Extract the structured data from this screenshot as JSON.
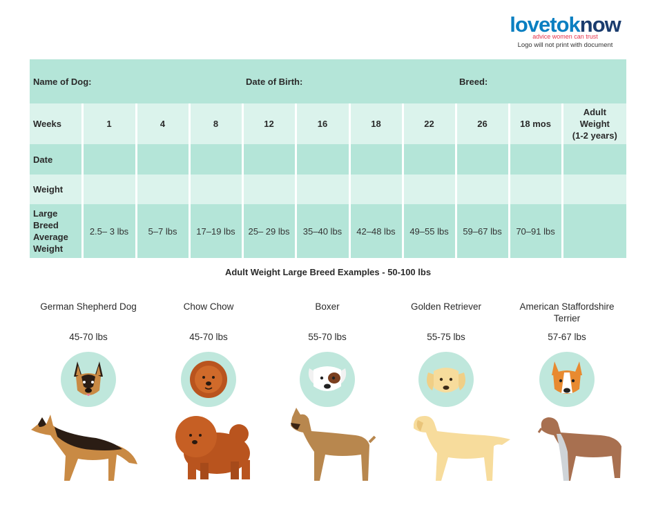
{
  "logo": {
    "word_a": "lovetok",
    "word_b": "now",
    "tagline": "advice women can trust",
    "note": "Logo will not print with document"
  },
  "header": {
    "name_label": "Name of Dog:",
    "dob_label": "Date of Birth:",
    "breed_label": "Breed:"
  },
  "table": {
    "weeks_label": "Weeks",
    "weeks": [
      "1",
      "4",
      "8",
      "12",
      "16",
      "18",
      "22",
      "26",
      "18 mos"
    ],
    "adult_weight_header": [
      "Adult",
      "Weight",
      "(1-2 years)"
    ],
    "date_label": "Date",
    "weight_label": "Weight",
    "large_breed_label": [
      "Large",
      "Breed",
      "Average",
      "Weight"
    ],
    "large_breed_values": [
      "2.5– 3 lbs",
      "5–7 lbs",
      "17–19 lbs",
      "25– 29 lbs",
      "35–40 lbs",
      "42–48 lbs",
      "49–55 lbs",
      "59–67 lbs",
      "70–91 lbs",
      ""
    ]
  },
  "examples": {
    "title": "Adult Weight Large Breed Examples - 50-100 lbs",
    "breeds": [
      {
        "name": "German Shepherd Dog",
        "weight": "45-70 lbs"
      },
      {
        "name": "Chow Chow",
        "weight": "45-70 lbs"
      },
      {
        "name": "Boxer",
        "weight": "55-70 lbs"
      },
      {
        "name": "Golden Retriever",
        "weight": "55-75 lbs"
      },
      {
        "name": "American Staffordshire Terrier",
        "weight": "57-67 lbs"
      }
    ]
  },
  "colors": {
    "row_dark": "#b4e5d8",
    "row_light": "#dbf3ec",
    "face_circle": "#bfe7dc",
    "logo_blue": "#0a7fc1",
    "logo_red": "#e5334b"
  }
}
